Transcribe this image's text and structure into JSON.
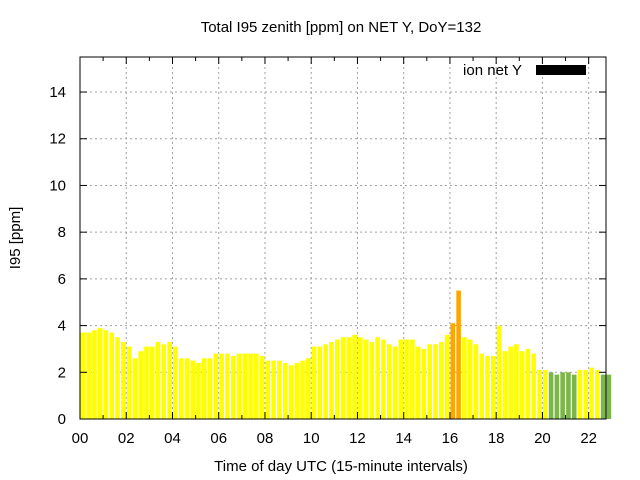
{
  "chart_data": {
    "type": "bar",
    "title": "Total I95 zenith [ppm] on NET Y, DoY=132",
    "xlabel": "Time of day UTC (15-minute intervals)",
    "ylabel": "I95 [ppm]",
    "legend": {
      "label": "ion net Y",
      "placement": "top-right"
    },
    "xlim": [
      0,
      22.75
    ],
    "ylim": [
      0,
      15.5
    ],
    "xticks": [
      "00",
      "02",
      "04",
      "06",
      "08",
      "10",
      "12",
      "14",
      "16",
      "18",
      "20",
      "22"
    ],
    "yticks": [
      "0",
      "2",
      "4",
      "6",
      "8",
      "10",
      "12",
      "14"
    ],
    "grid": true,
    "bin_hours": 0.25,
    "values": [
      3.7,
      3.7,
      3.8,
      3.9,
      3.8,
      3.7,
      3.5,
      3.3,
      3.1,
      2.6,
      2.9,
      3.1,
      3.1,
      3.3,
      3.2,
      3.3,
      3.1,
      2.6,
      2.6,
      2.5,
      2.4,
      2.6,
      2.6,
      2.8,
      2.8,
      2.8,
      2.7,
      2.8,
      2.8,
      2.8,
      2.8,
      2.7,
      2.5,
      2.5,
      2.5,
      2.4,
      2.3,
      2.4,
      2.5,
      2.6,
      3.1,
      3.1,
      3.2,
      3.3,
      3.4,
      3.5,
      3.5,
      3.6,
      3.5,
      3.4,
      3.3,
      3.5,
      3.4,
      3.2,
      3.1,
      3.4,
      3.4,
      3.4,
      3.1,
      3.0,
      3.2,
      3.2,
      3.3,
      3.6,
      4.1,
      5.5,
      3.5,
      3.4,
      3.2,
      2.8,
      2.7,
      2.7,
      4.0,
      2.9,
      3.1,
      3.2,
      2.9,
      3.0,
      2.8,
      2.1,
      2.1,
      2.0,
      1.9,
      2.0,
      2.0,
      1.9,
      2.1,
      2.1,
      2.2,
      2.1,
      1.9,
      1.9
    ],
    "colors": {
      "normal": "#ffff00",
      "elevated": "#ffa500",
      "low": "#7ab648",
      "legend": "#000000",
      "grid": "#a0a0a0"
    }
  }
}
